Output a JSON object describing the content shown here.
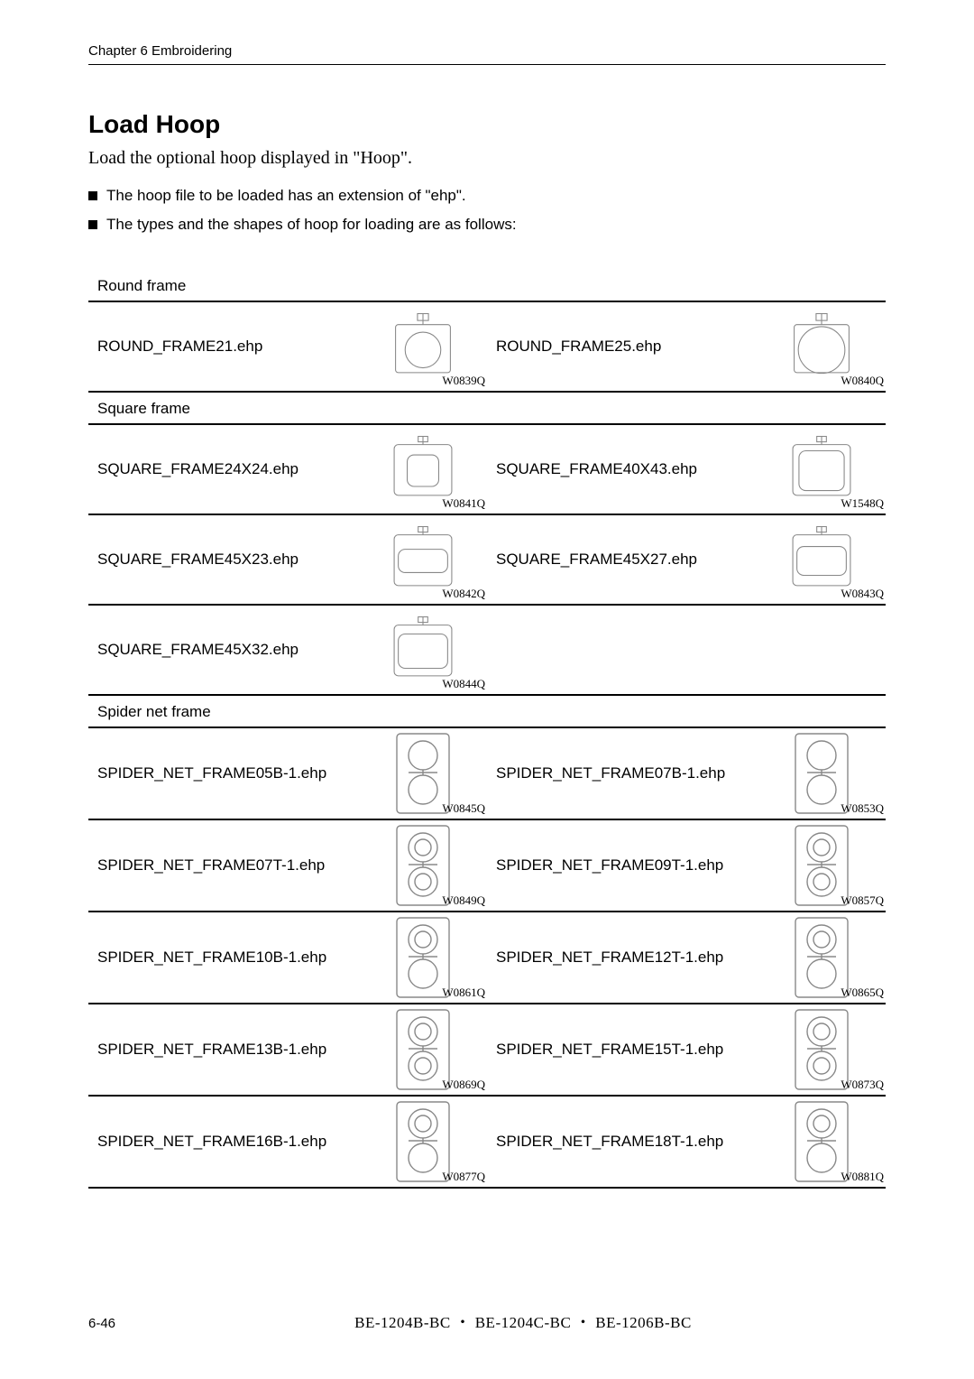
{
  "header": {
    "chapter": "Chapter 6    Embroidering"
  },
  "title": "Load Hoop",
  "intro": "Load the optional hoop displayed in \"Hoop\".",
  "bullets": [
    "The hoop file to be loaded has an extension of \"ehp\".",
    "The types and the shapes of hoop for loading are as follows:"
  ],
  "categories": [
    {
      "name": "Round frame",
      "tall": true,
      "rows": [
        {
          "left": {
            "file": "ROUND_FRAME21.ehp",
            "code": "W0839Q",
            "icon": "round-small"
          },
          "right": {
            "file": "ROUND_FRAME25.ehp",
            "code": "W0840Q",
            "icon": "round-large"
          }
        }
      ]
    },
    {
      "name": "Square frame",
      "tall": true,
      "rows": [
        {
          "left": {
            "file": "SQUARE_FRAME24X24.ehp",
            "code": "W0841Q",
            "icon": "sq-24"
          },
          "right": {
            "file": "SQUARE_FRAME40X43.ehp",
            "code": "W1548Q",
            "icon": "sq-40"
          }
        },
        {
          "left": {
            "file": "SQUARE_FRAME45X23.ehp",
            "code": "W0842Q",
            "icon": "sq-45x23"
          },
          "right": {
            "file": "SQUARE_FRAME45X27.ehp",
            "code": "W0843Q",
            "icon": "sq-45x27"
          }
        },
        {
          "left": {
            "file": "SQUARE_FRAME45X32.ehp",
            "code": "W0844Q",
            "icon": "sq-45x32"
          },
          "right": null
        }
      ]
    },
    {
      "name": "Spider net frame",
      "tall": false,
      "rows": [
        {
          "left": {
            "file": "SPIDER_NET_FRAME05B-1.ehp",
            "code": "W0845Q",
            "icon": "spider-a"
          },
          "right": {
            "file": "SPIDER_NET_FRAME07B-1.ehp",
            "code": "W0853Q",
            "icon": "spider-a"
          }
        },
        {
          "left": {
            "file": "SPIDER_NET_FRAME07T-1.ehp",
            "code": "W0849Q",
            "icon": "spider-b"
          },
          "right": {
            "file": "SPIDER_NET_FRAME09T-1.ehp",
            "code": "W0857Q",
            "icon": "spider-b"
          }
        },
        {
          "left": {
            "file": "SPIDER_NET_FRAME10B-1.ehp",
            "code": "W0861Q",
            "icon": "spider-c"
          },
          "right": {
            "file": "SPIDER_NET_FRAME12T-1.ehp",
            "code": "W0865Q",
            "icon": "spider-c"
          }
        },
        {
          "left": {
            "file": "SPIDER_NET_FRAME13B-1.ehp",
            "code": "W0869Q",
            "icon": "spider-d"
          },
          "right": {
            "file": "SPIDER_NET_FRAME15T-1.ehp",
            "code": "W0873Q",
            "icon": "spider-d"
          }
        },
        {
          "left": {
            "file": "SPIDER_NET_FRAME16B-1.ehp",
            "code": "W0877Q",
            "icon": "spider-e"
          },
          "right": {
            "file": "SPIDER_NET_FRAME18T-1.ehp",
            "code": "W0881Q",
            "icon": "spider-e"
          }
        }
      ]
    }
  ],
  "footer": {
    "page": "6-46",
    "models": "BE-1204B-BC ・ BE-1204C-BC ・ BE-1206B-BC"
  },
  "colors": {
    "text": "#000000",
    "rule": "#000000",
    "lineart": "#888888",
    "background": "#ffffff"
  }
}
